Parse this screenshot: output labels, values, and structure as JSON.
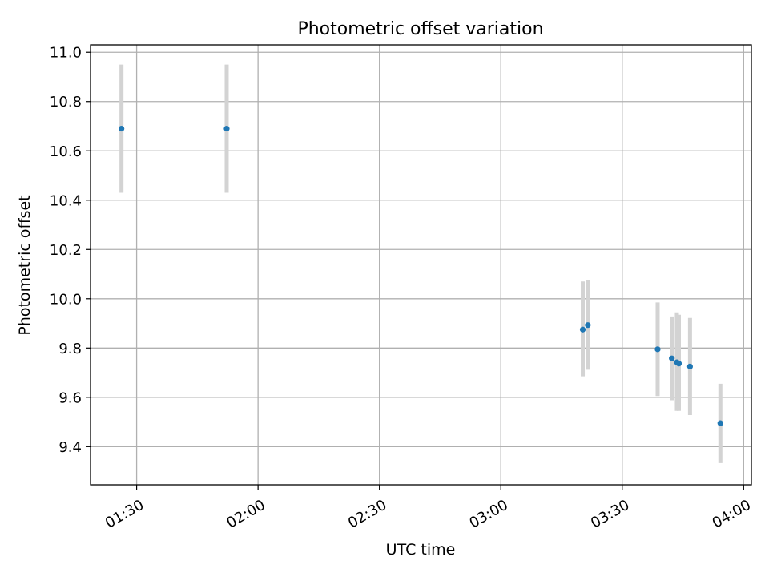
{
  "chart_data": {
    "type": "scatter",
    "title": "Photometric offset variation",
    "xlabel": "UTC time",
    "ylabel": "Photometric offset",
    "x_axis_kind": "time",
    "xlim": [
      "01:18:36",
      "04:01:55"
    ],
    "ylim": [
      9.245,
      11.03
    ],
    "x_ticks": [
      "01:30",
      "02:00",
      "02:30",
      "03:00",
      "03:30",
      "04:00"
    ],
    "y_ticks": [
      9.4,
      9.6,
      9.8,
      10.0,
      10.2,
      10.4,
      10.6,
      10.8,
      11.0
    ],
    "y_tick_labels": [
      "9.4",
      "9.6",
      "9.8",
      "10.0",
      "10.2",
      "10.4",
      "10.6",
      "10.8",
      "11.0"
    ],
    "grid": true,
    "series": [
      {
        "points": [
          {
            "x": "01:26:15",
            "y": 10.69,
            "y_err_low": 10.43,
            "y_err_high": 10.95
          },
          {
            "x": "01:52:15",
            "y": 10.69,
            "y_err_low": 10.43,
            "y_err_high": 10.95
          },
          {
            "x": "03:20:15",
            "y": 9.875,
            "y_err_low": 9.685,
            "y_err_high": 10.07
          },
          {
            "x": "03:21:30",
            "y": 9.893,
            "y_err_low": 9.712,
            "y_err_high": 10.074
          },
          {
            "x": "03:38:45",
            "y": 9.795,
            "y_err_low": 9.605,
            "y_err_high": 9.985
          },
          {
            "x": "03:42:15",
            "y": 9.758,
            "y_err_low": 9.588,
            "y_err_high": 9.928
          },
          {
            "x": "03:43:30",
            "y": 9.742,
            "y_err_low": 9.545,
            "y_err_high": 9.945
          },
          {
            "x": "03:44:00",
            "y": 9.737,
            "y_err_low": 9.545,
            "y_err_high": 9.935
          },
          {
            "x": "03:46:45",
            "y": 9.725,
            "y_err_low": 9.528,
            "y_err_high": 9.922
          },
          {
            "x": "03:54:15",
            "y": 9.495,
            "y_err_low": 9.333,
            "y_err_high": 9.655
          }
        ]
      }
    ],
    "colors": {
      "marker": "#1f77b4",
      "error_bar": "#d3d3d3",
      "grid": "#b0b0b0",
      "axes": "#000000"
    }
  }
}
